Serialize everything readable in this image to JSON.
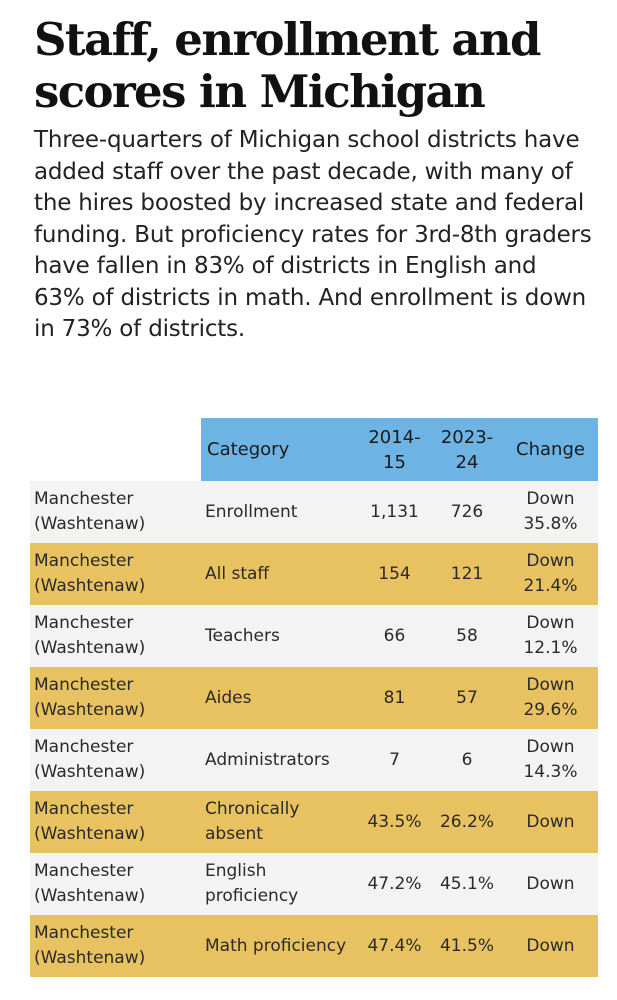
{
  "title": "Staff, enrollment and scores in Michigan",
  "description": "Three-quarters of Michigan school districts have added staff over the past decade, with many of the hires boosted by increased state and federal funding. But proficiency rates for 3rd-8th graders have fallen in 83% of districts in English and 63% of districts in math. And enrollment is down in 73% of districts.",
  "colors": {
    "header_bg": "#6db3e3",
    "row_light": "#f3f3f3",
    "row_gold": "#e8c261"
  },
  "chart_data": {
    "type": "table",
    "columns": [
      "",
      "Category",
      "2014-15",
      "2023-24",
      "Change"
    ],
    "rows": [
      {
        "district": "Manchester (Washtenaw)",
        "category": "Enrollment",
        "y2014": "1,131",
        "y2023": "726",
        "change": "Down 35.8%"
      },
      {
        "district": "Manchester (Washtenaw)",
        "category": "All staff",
        "y2014": "154",
        "y2023": "121",
        "change": "Down 21.4%"
      },
      {
        "district": "Manchester (Washtenaw)",
        "category": "Teachers",
        "y2014": "66",
        "y2023": "58",
        "change": "Down 12.1%"
      },
      {
        "district": "Manchester (Washtenaw)",
        "category": "Aides",
        "y2014": "81",
        "y2023": "57",
        "change": "Down 29.6%"
      },
      {
        "district": "Manchester (Washtenaw)",
        "category": "Administrators",
        "y2014": "7",
        "y2023": "6",
        "change": "Down 14.3%"
      },
      {
        "district": "Manchester (Washtenaw)",
        "category": "Chronically absent",
        "y2014": "43.5%",
        "y2023": "26.2%",
        "change": "Down"
      },
      {
        "district": "Manchester (Washtenaw)",
        "category": "English proficiency",
        "y2014": "47.2%",
        "y2023": "45.1%",
        "change": "Down"
      },
      {
        "district": "Manchester (Washtenaw)",
        "category": "Math proficiency",
        "y2014": "47.4%",
        "y2023": "41.5%",
        "change": "Down"
      }
    ]
  }
}
